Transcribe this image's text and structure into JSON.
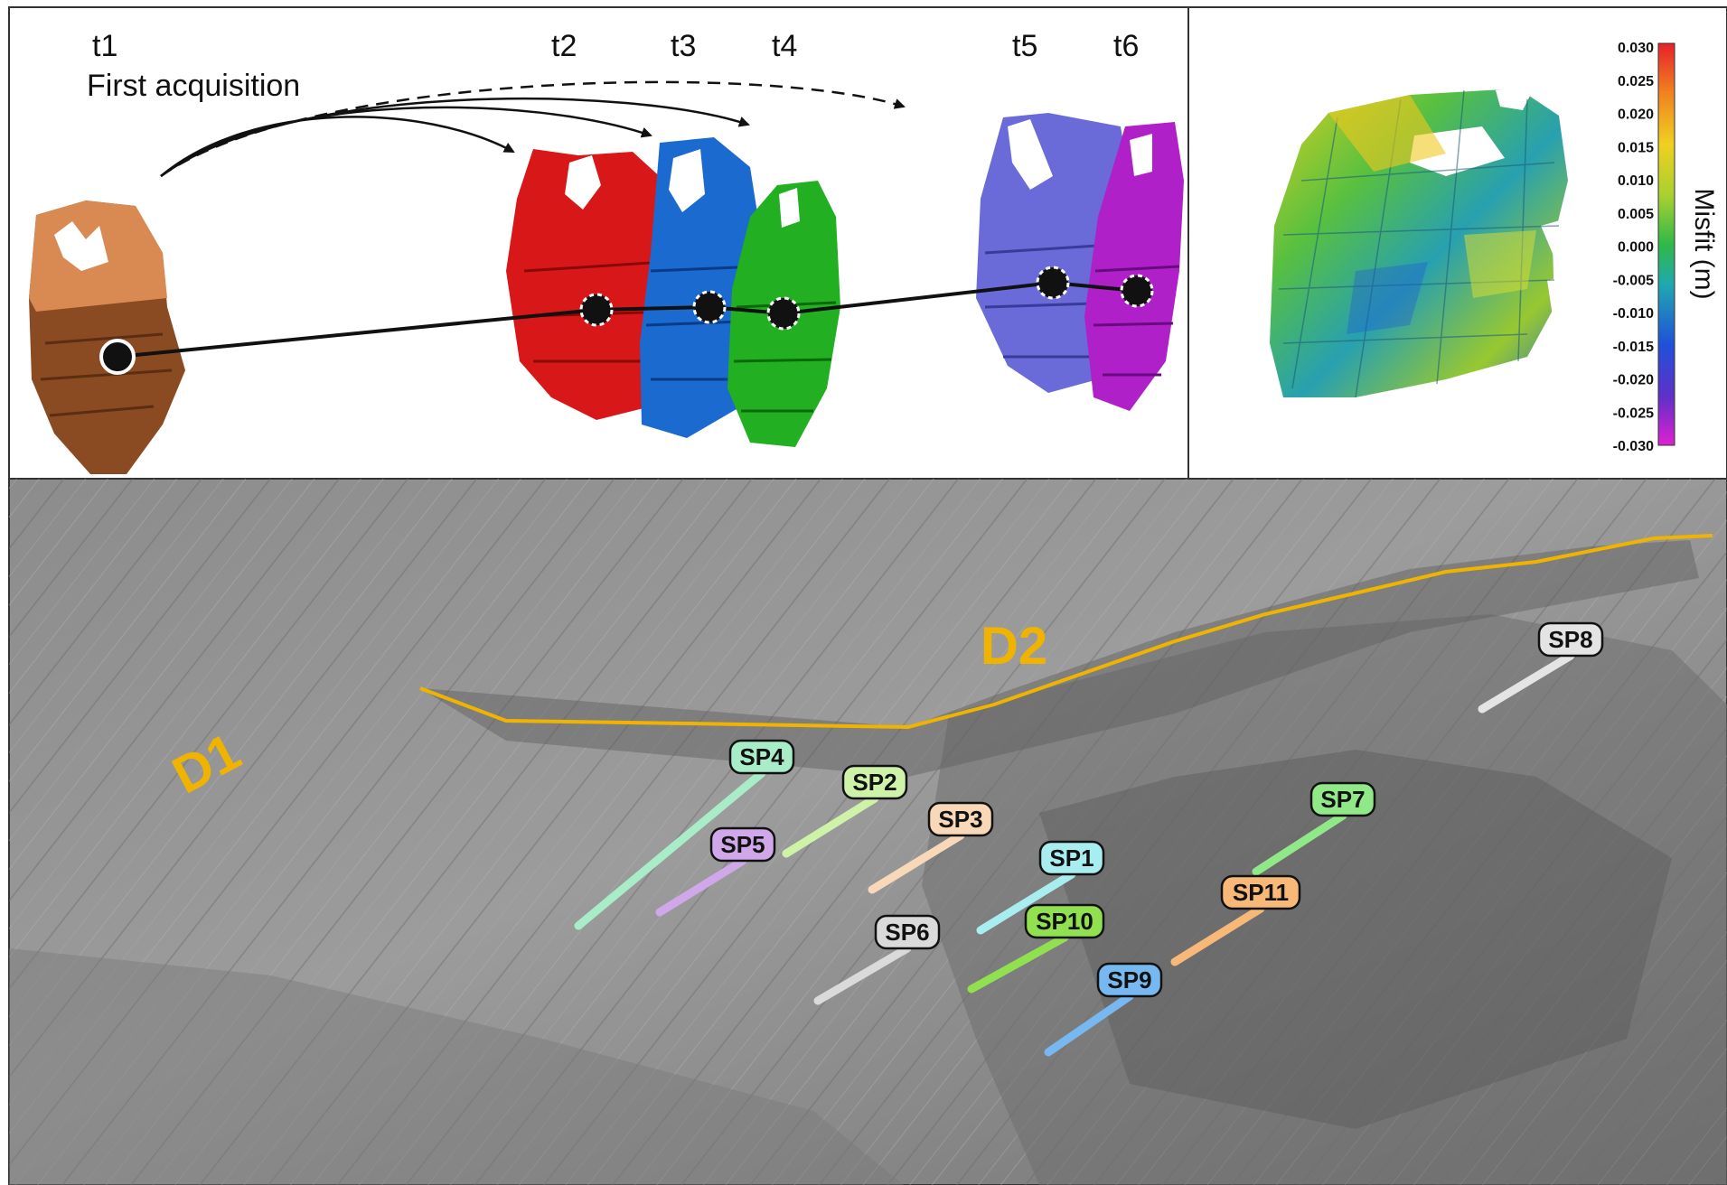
{
  "top": {
    "times": [
      "t1",
      "t2",
      "t3",
      "t4",
      "t5",
      "t6"
    ],
    "first_acquisition": "First acquisition"
  },
  "colorbar": {
    "title": "Misfit (m)",
    "ticks": [
      "0.030",
      "0.025",
      "0.020",
      "0.015",
      "0.010",
      "0.005",
      "0.000",
      "-0.005",
      "-0.010",
      "-0.015",
      "-0.020",
      "-0.025",
      "-0.030"
    ],
    "colors": [
      "#e8202a",
      "#f08020",
      "#f0d020",
      "#a8d030",
      "#30b848",
      "#20a8b0",
      "#2050d8",
      "#6030c8",
      "#e020d0"
    ]
  },
  "terrain": {
    "divisions": [
      "D1",
      "D2"
    ],
    "division_color": "#f0b400",
    "sensor_points": [
      {
        "label": "SP1",
        "color": "#a8eef0"
      },
      {
        "label": "SP2",
        "color": "#cdf2a8"
      },
      {
        "label": "SP3",
        "color": "#f8d8b8"
      },
      {
        "label": "SP4",
        "color": "#a8ecc8"
      },
      {
        "label": "SP5",
        "color": "#d0a8ea"
      },
      {
        "label": "SP6",
        "color": "#dadada"
      },
      {
        "label": "SP7",
        "color": "#90e888"
      },
      {
        "label": "SP8",
        "color": "#e4e4e4"
      },
      {
        "label": "SP9",
        "color": "#78b8f0"
      },
      {
        "label": "SP10",
        "color": "#90e050"
      },
      {
        "label": "SP11",
        "color": "#f8b878"
      }
    ]
  }
}
